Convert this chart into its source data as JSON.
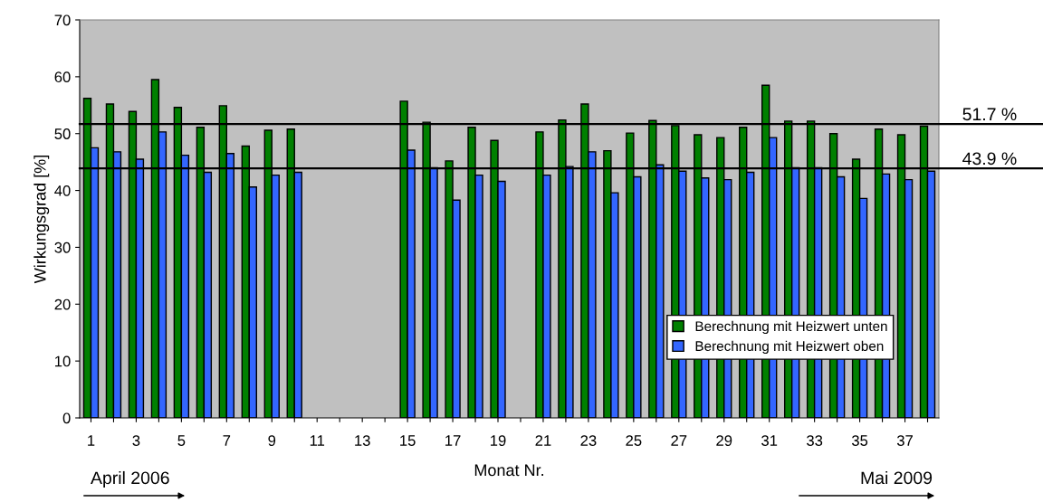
{
  "chart_data": {
    "type": "bar",
    "xlabel": "Monat Nr.",
    "ylabel": "Wirkungsgrad [%]",
    "categories": [
      "1",
      null,
      "3",
      null,
      "5",
      null,
      "7",
      null,
      "9",
      null,
      "11",
      null,
      "13",
      null,
      "15",
      null,
      "17",
      null,
      "19",
      null,
      "21",
      null,
      "23",
      null,
      "25",
      null,
      "27",
      null,
      "29",
      null,
      "31",
      null,
      "33",
      null,
      "35",
      null,
      "37",
      null
    ],
    "series": [
      {
        "name": "Berechnung mit Heizwert unten",
        "color": "#008000",
        "values": [
          56.2,
          55.2,
          53.9,
          59.5,
          54.6,
          51.1,
          54.9,
          47.8,
          50.6,
          50.8,
          null,
          null,
          null,
          null,
          55.7,
          52.0,
          45.2,
          51.1,
          48.8,
          null,
          50.3,
          52.4,
          55.2,
          47.0,
          50.1,
          52.3,
          51.4,
          49.8,
          49.3,
          51.1,
          58.5,
          52.2,
          52.2,
          50.0,
          45.5,
          50.8,
          49.8,
          51.3
        ]
      },
      {
        "name": "Berechnung mit Heizwert oben",
        "color": "#3366ff",
        "values": [
          47.5,
          46.8,
          45.5,
          50.3,
          46.2,
          43.2,
          46.5,
          40.6,
          42.7,
          43.2,
          null,
          null,
          null,
          null,
          47.1,
          44.0,
          38.3,
          42.7,
          41.6,
          null,
          42.7,
          44.2,
          46.8,
          39.6,
          42.4,
          44.5,
          43.4,
          42.2,
          41.9,
          43.2,
          49.3,
          44.0,
          44.0,
          42.4,
          38.6,
          42.9,
          41.9,
          43.4
        ]
      }
    ],
    "ylim": [
      0,
      70
    ],
    "yticks": [
      0,
      10,
      20,
      30,
      40,
      50,
      60,
      70
    ],
    "ref_lines": [
      {
        "axis": "y",
        "value": 51.7,
        "label": "51.7 %",
        "color": "#000000"
      },
      {
        "axis": "y",
        "value": 43.9,
        "label": "43.9 %",
        "color": "#000000"
      }
    ],
    "annotations": [
      "April 2006",
      "Mai 2009"
    ],
    "legend": "bottom right",
    "grid": false
  }
}
